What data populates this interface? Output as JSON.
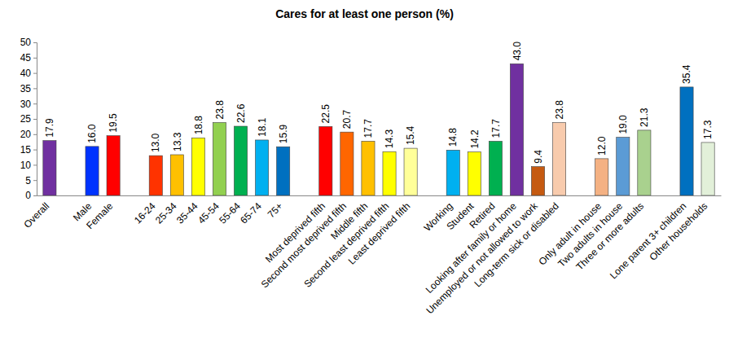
{
  "chart_data": {
    "type": "bar",
    "title": "Cares for at least one person (%)",
    "categories": [
      "Overall",
      null,
      "Male",
      "Female",
      null,
      "16-24",
      "25-34",
      "35-44",
      "45-54",
      "55-64",
      "65-74",
      "75+",
      null,
      "Most deprived fifth",
      "Second most deprived fifth",
      "Middle fifth",
      "Second least deprived fifth",
      "Least deprived fifth",
      null,
      "Working",
      "Student",
      "Retired",
      "Looking after family or home",
      "Unemployed or not allowed to work",
      "Long-term sick or disabled",
      null,
      "Only adult in house",
      "Two adults in house",
      "Three or more adults",
      null,
      "Lone parent 3+ children",
      "Other households"
    ],
    "values": [
      17.9,
      null,
      16.0,
      19.5,
      null,
      13.0,
      13.3,
      18.8,
      23.8,
      22.6,
      18.1,
      15.9,
      null,
      22.5,
      20.7,
      17.7,
      14.3,
      15.4,
      null,
      14.8,
      14.2,
      17.7,
      43.0,
      9.4,
      23.8,
      null,
      12.0,
      19.0,
      21.3,
      null,
      35.4,
      17.3
    ],
    "value_labels": [
      "17.9",
      null,
      "16.0",
      "19.5",
      null,
      "13.0",
      "13.3",
      "18.8",
      "23.8",
      "22.6",
      "18.1",
      "15.9",
      null,
      "22.5",
      "20.7",
      "17.7",
      "14.3",
      "15.4",
      null,
      "14.8",
      "14.2",
      "17.7",
      "43.0",
      "9.4",
      "23.8",
      null,
      "12.0",
      "19.0",
      "21.3",
      null,
      "35.4",
      "17.3"
    ],
    "colors": [
      "#7030a0",
      null,
      "#0033ff",
      "#ff0000",
      null,
      "#ff3300",
      "#ffc000",
      "#ffff00",
      "#92d050",
      "#00b050",
      "#00b0f0",
      "#0070c0",
      null,
      "#ff0000",
      "#ff6600",
      "#ffc000",
      "#ffff00",
      "#ffff99",
      null,
      "#00b0f0",
      "#ffff00",
      "#00b050",
      "#7030a0",
      "#c55a11",
      "#f8cbad",
      null,
      "#f4b183",
      "#5b9bd5",
      "#a9d18e",
      null,
      "#0070c0",
      "#e2f0d9"
    ],
    "ylim": [
      0,
      50
    ],
    "yticks": [
      0,
      5,
      10,
      15,
      20,
      25,
      30,
      35,
      40,
      45,
      50
    ],
    "grid": false,
    "data_labels": true
  }
}
